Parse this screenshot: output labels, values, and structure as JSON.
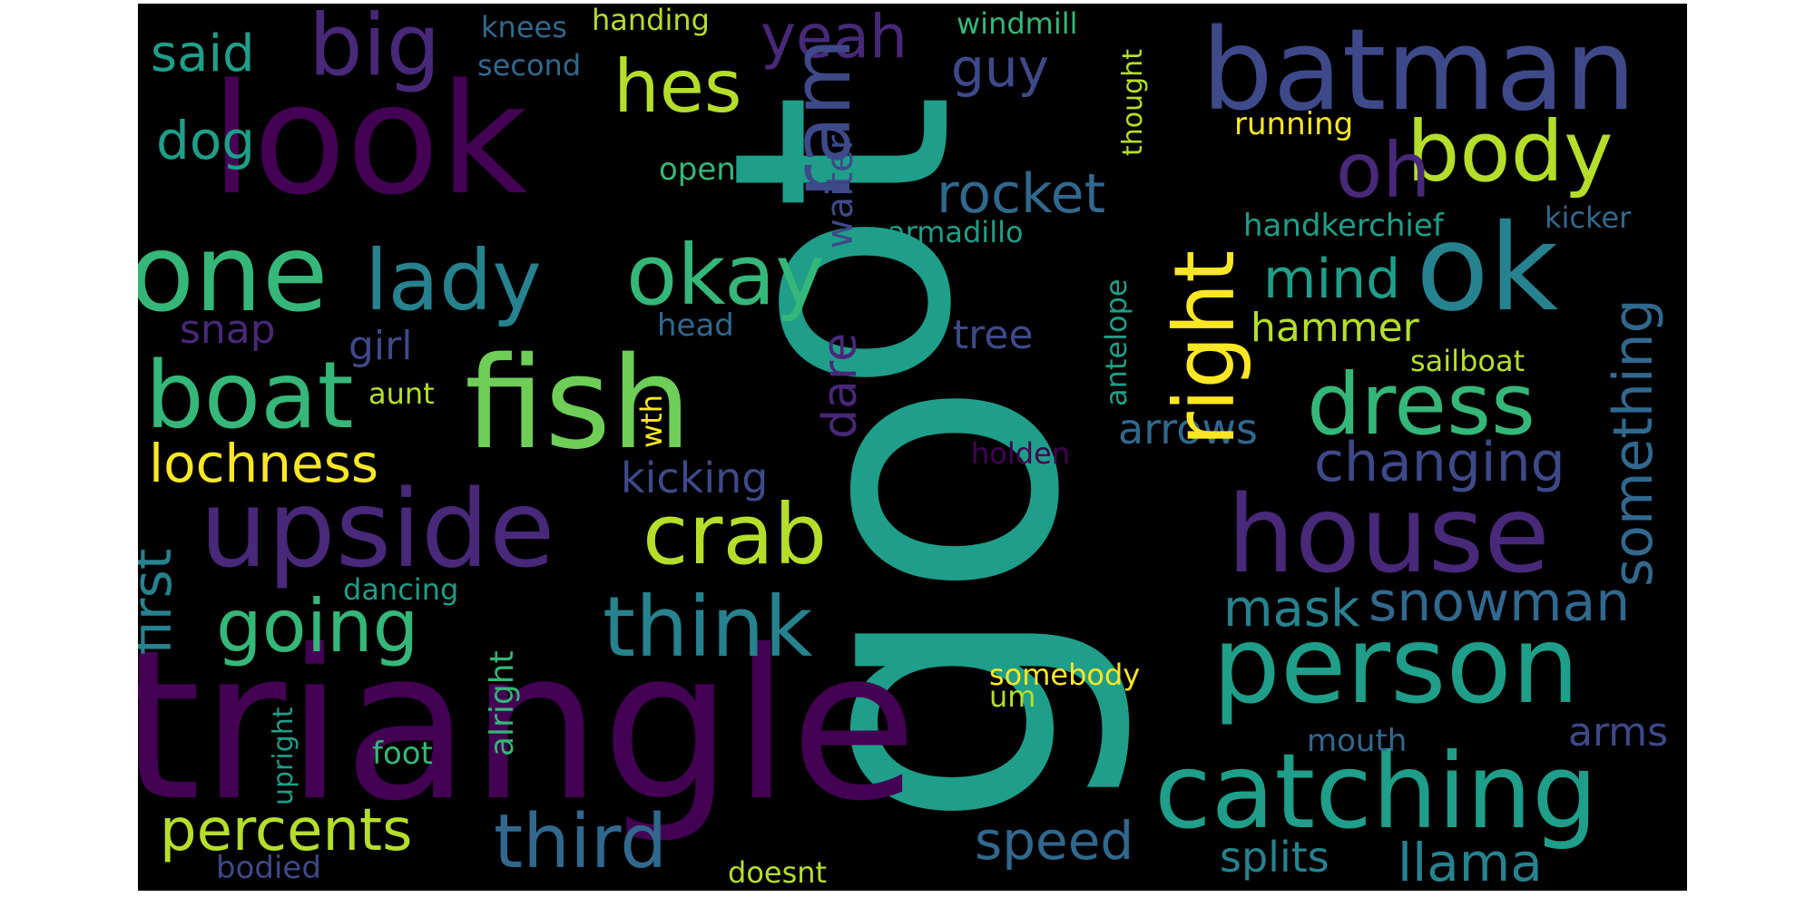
{
  "words": {
    "look": "look",
    "one": "one",
    "triangle": "triangle",
    "fish": "fish",
    "upside": "upside",
    "boat": "boat",
    "go": "go",
    "ot": "ot",
    "batman": "batman",
    "ok": "ok",
    "house": "house",
    "person": "person",
    "catching": "catching",
    "big": "big",
    "lady": "lady",
    "okay": "okay",
    "crab": "crab",
    "think": "think",
    "going": "going",
    "third": "third",
    "percents": "percents",
    "lochness": "lochness",
    "body": "body",
    "dress": "dress",
    "oh": "oh",
    "right": "right",
    "ram": "ram",
    "hes": "hes",
    "yeah": "yeah",
    "said": "said",
    "dog": "dog",
    "rocket": "rocket",
    "mind": "mind",
    "hammer": "hammer",
    "changing": "changing",
    "snowman": "snowman",
    "mask": "mask",
    "speed": "speed",
    "llama": "llama",
    "splits": "splits",
    "arms": "arms",
    "something": "something",
    "first": "first",
    "dare": "dare",
    "kicking": "kicking",
    "arrows": "arrows",
    "guy": "guy",
    "windmill": "windmill",
    "handing": "handing",
    "knees": "knees",
    "second": "second",
    "running": "running",
    "open": "open",
    "waiter": "waiter",
    "armadillo": "armadillo",
    "handkerchief": "handkerchief",
    "kicker": "kicker",
    "snap": "snap",
    "girl": "girl",
    "head": "head",
    "tree": "tree",
    "antelope": "antelope",
    "thought": "thought",
    "sailboat": "sailboat",
    "aunt": "aunt",
    "wth": "wth",
    "holden": "holden",
    "dancing": "dancing",
    "alright": "alright",
    "somebody": "somebody",
    "um": "um",
    "foot": "foot",
    "upright": "upright",
    "mouth": "mouth",
    "bodied": "bodied",
    "doesnt": "doesnt"
  },
  "colors": {
    "background": "#000000",
    "dark_purple": "#440154",
    "purple": "#482878",
    "indigo": "#3e4989",
    "blue": "#31688e",
    "teal_blue": "#26828e",
    "teal": "#1f9e89",
    "green": "#35b779",
    "light_green": "#6ece58",
    "lime": "#b5de2b",
    "yellow": "#fde725"
  }
}
